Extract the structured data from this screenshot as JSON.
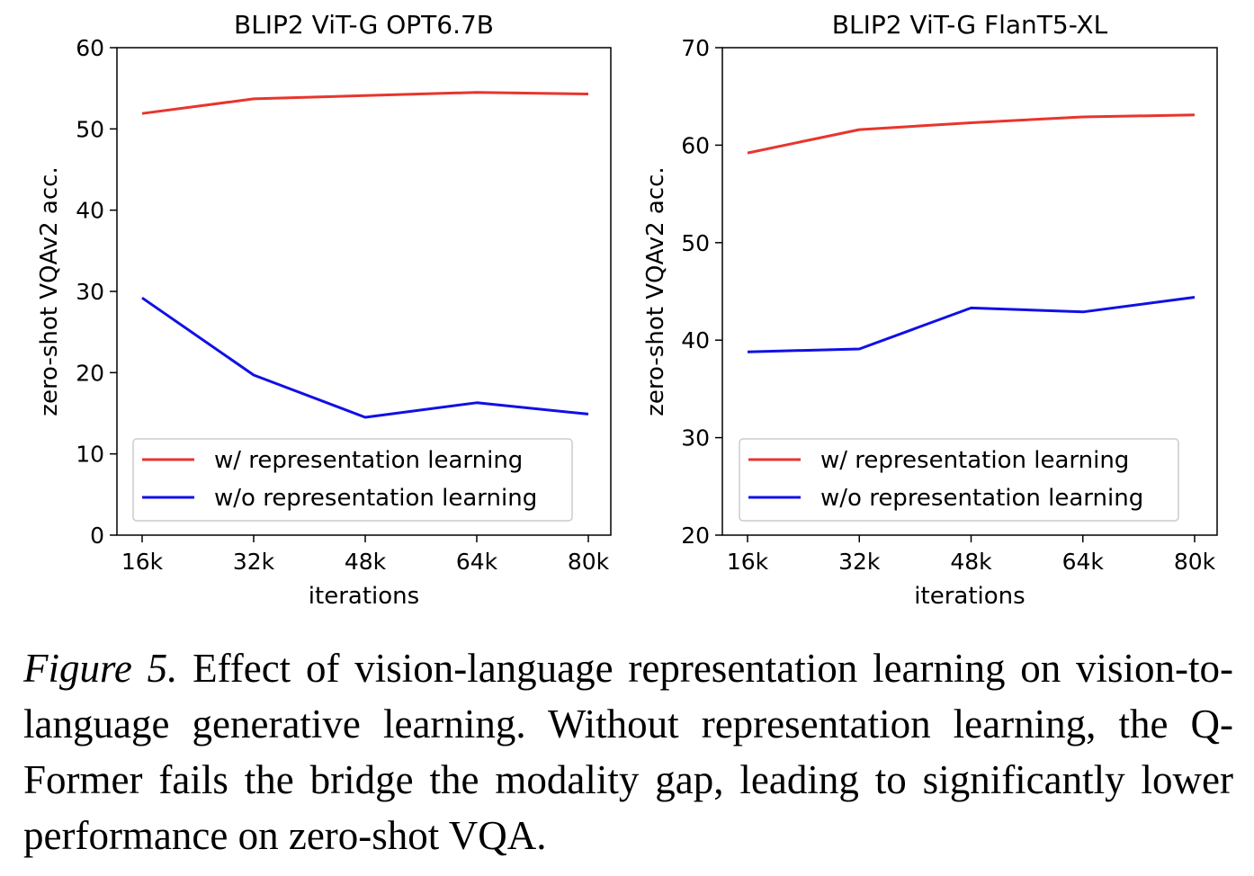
{
  "chart_data": [
    {
      "type": "line",
      "title": "BLIP2 ViT-G OPT6.7B",
      "xlabel": "iterations",
      "ylabel": "zero-shot VQAv2 acc.",
      "categories": [
        "16k",
        "32k",
        "48k",
        "64k",
        "80k"
      ],
      "yticks": [
        "0",
        "10",
        "20",
        "30",
        "40",
        "50",
        "60"
      ],
      "ylim": [
        0,
        60
      ],
      "grid": false,
      "legend_position": "lower-right",
      "series": [
        {
          "name": "w/ representation learning",
          "color": "#e8352d",
          "values": [
            51.9,
            53.7,
            54.1,
            54.5,
            54.3
          ]
        },
        {
          "name": "w/o representation learning",
          "color": "#1010e6",
          "values": [
            29.2,
            19.7,
            14.5,
            16.3,
            14.9
          ]
        }
      ]
    },
    {
      "type": "line",
      "title": "BLIP2 ViT-G FlanT5-XL",
      "xlabel": "iterations",
      "ylabel": "zero-shot VQAv2 acc.",
      "categories": [
        "16k",
        "32k",
        "48k",
        "64k",
        "80k"
      ],
      "yticks": [
        "20",
        "30",
        "40",
        "50",
        "60",
        "70"
      ],
      "ylim": [
        20,
        70
      ],
      "grid": false,
      "legend_position": "lower-right",
      "series": [
        {
          "name": "w/ representation learning",
          "color": "#e8352d",
          "values": [
            59.2,
            61.6,
            62.3,
            62.9,
            63.1
          ]
        },
        {
          "name": "w/o representation learning",
          "color": "#1010e6",
          "values": [
            38.8,
            39.1,
            43.3,
            42.9,
            44.4
          ]
        }
      ]
    }
  ],
  "caption": {
    "label": "Figure 5.",
    "text": "Effect of vision-language representation learning on vision-to-language generative learning.  Without representation learning, the Q-Former fails the bridge the modality gap, leading to significantly lower performance on zero-shot VQA."
  }
}
